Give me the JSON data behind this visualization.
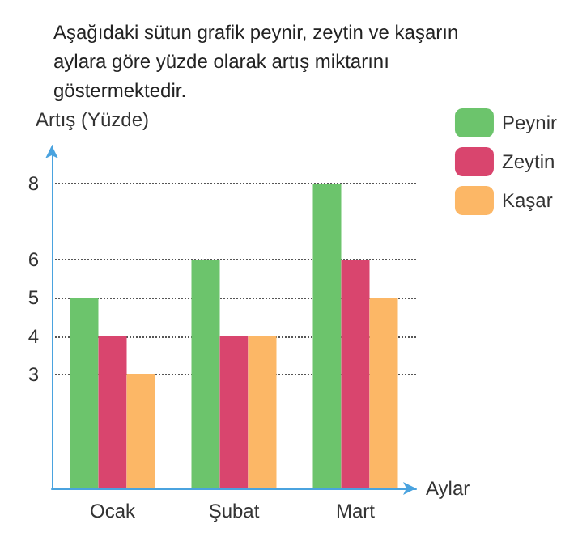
{
  "chart_data": {
    "type": "bar",
    "title": "Aşağıdaki sütun grafik peynir, zeytin ve kaşarın aylara göre yüzde olarak artış miktarını göstermektedir.",
    "xlabel": "Aylar",
    "ylabel": "Artış (Yüzde)",
    "categories": [
      "Ocak",
      "Şubat",
      "Mart"
    ],
    "series": [
      {
        "name": "Peynir",
        "color": "#6cc46c",
        "values": [
          5,
          6,
          8
        ]
      },
      {
        "name": "Zeytin",
        "color": "#d9456e",
        "values": [
          4,
          4,
          6
        ]
      },
      {
        "name": "Kaşar",
        "color": "#fcb766",
        "values": [
          3,
          4,
          5
        ]
      }
    ],
    "ylim": [
      0,
      9
    ],
    "yticks": [
      3,
      4,
      5,
      6,
      8
    ],
    "grid": "y",
    "legend": "top right"
  }
}
